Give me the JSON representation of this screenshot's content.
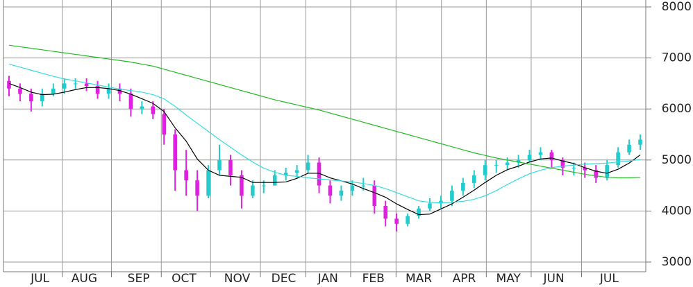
{
  "chart_data": {
    "type": "candlestick",
    "x": [
      0,
      1,
      2,
      3,
      4,
      5,
      6,
      7,
      8,
      9,
      10,
      11,
      12,
      13,
      14,
      15,
      16,
      17,
      18,
      19,
      20,
      21,
      22,
      23,
      24,
      25,
      26,
      27,
      28,
      29,
      30,
      31,
      32,
      33,
      34,
      35,
      36,
      37,
      38,
      39,
      40,
      41,
      42,
      43,
      44,
      45,
      46,
      47,
      48,
      49,
      50,
      51,
      52,
      53,
      54,
      55,
      56,
      57
    ],
    "open": [
      6550,
      6400,
      6300,
      6150,
      6300,
      6400,
      6500,
      6500,
      6450,
      6300,
      6400,
      6300,
      6000,
      6050,
      5900,
      5500,
      4800,
      4600,
      4300,
      4800,
      5000,
      4700,
      4300,
      4500,
      4500,
      4700,
      4750,
      4800,
      4950,
      4500,
      4300,
      4400,
      4500,
      4500,
      4100,
      3850,
      3750,
      3900,
      4050,
      4150,
      4200,
      4400,
      4550,
      4700,
      4900,
      4900,
      4950,
      5000,
      5100,
      5150,
      5000,
      4850,
      4850,
      4800,
      4650,
      4900,
      5150,
      5300
    ],
    "high": [
      6650,
      6500,
      6400,
      6400,
      6500,
      6600,
      6600,
      6600,
      6550,
      6500,
      6500,
      6400,
      6150,
      6150,
      6000,
      5600,
      5200,
      4800,
      4900,
      5300,
      5100,
      4800,
      4600,
      4600,
      4800,
      4850,
      4900,
      5100,
      5050,
      4600,
      4500,
      4600,
      4650,
      4600,
      4200,
      3950,
      3950,
      4100,
      4250,
      4300,
      4500,
      4650,
      4800,
      5000,
      5000,
      5050,
      5100,
      5200,
      5250,
      5200,
      5050,
      4950,
      4950,
      4900,
      5000,
      5250,
      5400,
      5500
    ],
    "low": [
      6250,
      6150,
      5950,
      6050,
      6250,
      6300,
      6400,
      6350,
      6200,
      6200,
      6150,
      5850,
      5900,
      5800,
      5300,
      4400,
      4300,
      4000,
      4250,
      4700,
      4500,
      4050,
      4250,
      4350,
      4500,
      4600,
      4650,
      4750,
      4350,
      4150,
      4200,
      4300,
      4400,
      3950,
      3700,
      3600,
      3700,
      3850,
      4000,
      4050,
      4100,
      4300,
      4450,
      4600,
      4750,
      4800,
      4850,
      4950,
      5000,
      4850,
      4700,
      4700,
      4650,
      4550,
      4600,
      4850,
      5100,
      5200
    ],
    "close": [
      6400,
      6300,
      6150,
      6300,
      6400,
      6500,
      6500,
      6450,
      6300,
      6400,
      6300,
      6000,
      6050,
      5900,
      5500,
      4800,
      4600,
      4300,
      4800,
      5000,
      4700,
      4300,
      4500,
      4500,
      4700,
      4750,
      4800,
      4950,
      4500,
      4300,
      4400,
      4500,
      4500,
      4100,
      3850,
      3750,
      3900,
      4050,
      4150,
      4200,
      4400,
      4550,
      4700,
      4900,
      4900,
      4950,
      5000,
      5100,
      5150,
      5000,
      4850,
      4850,
      4800,
      4650,
      4900,
      5150,
      5300,
      5400
    ],
    "up_color": "#22cccc",
    "down_color": "#e020e0",
    "lines": [
      {
        "color": "#000000",
        "values": [
          6500,
          6420,
          6330,
          6280,
          6290,
          6330,
          6380,
          6420,
          6420,
          6400,
          6360,
          6290,
          6200,
          6110,
          5950,
          5630,
          5370,
          5020,
          4800,
          4700,
          4680,
          4660,
          4560,
          4560,
          4560,
          4570,
          4640,
          4740,
          4740,
          4650,
          4590,
          4530,
          4440,
          4360,
          4270,
          4140,
          4030,
          3930,
          3940,
          4040,
          4140,
          4270,
          4410,
          4560,
          4700,
          4810,
          4880,
          4960,
          5020,
          5040,
          4980,
          4930,
          4850,
          4780,
          4740,
          4820,
          4940,
          5100
        ]
      },
      {
        "color": "#33dddd",
        "values": [
          6880,
          6820,
          6760,
          6700,
          6640,
          6590,
          6550,
          6510,
          6470,
          6430,
          6390,
          6360,
          6330,
          6280,
          6200,
          6050,
          5880,
          5720,
          5560,
          5400,
          5250,
          5100,
          4960,
          4840,
          4760,
          4700,
          4680,
          4650,
          4630,
          4610,
          4590,
          4570,
          4540,
          4500,
          4440,
          4360,
          4280,
          4200,
          4170,
          4160,
          4170,
          4190,
          4230,
          4300,
          4400,
          4520,
          4630,
          4730,
          4800,
          4850,
          4880,
          4900,
          4920,
          4930,
          4940,
          4960,
          4980,
          5010
        ]
      },
      {
        "color": "#22bb22",
        "values": [
          7250,
          7220,
          7190,
          7160,
          7130,
          7100,
          7070,
          7040,
          7010,
          6980,
          6950,
          6920,
          6880,
          6840,
          6780,
          6720,
          6660,
          6600,
          6540,
          6480,
          6420,
          6360,
          6300,
          6240,
          6180,
          6130,
          6080,
          6030,
          5980,
          5920,
          5860,
          5800,
          5740,
          5680,
          5620,
          5560,
          5500,
          5440,
          5380,
          5320,
          5260,
          5200,
          5140,
          5090,
          5040,
          5000,
          4960,
          4920,
          4880,
          4840,
          4800,
          4760,
          4720,
          4690,
          4660,
          4650,
          4650,
          4660
        ]
      }
    ],
    "xlim": [
      -0.5,
      57.5
    ],
    "xticks": [
      {
        "value": 2.8,
        "label": "JUL"
      },
      {
        "value": 6.8,
        "label": "AUG"
      },
      {
        "value": 11.7,
        "label": "SEP"
      },
      {
        "value": 15.8,
        "label": "OCT"
      },
      {
        "value": 20.6,
        "label": "NOV"
      },
      {
        "value": 24.8,
        "label": "DEC"
      },
      {
        "value": 28.8,
        "label": "JAN"
      },
      {
        "value": 32.9,
        "label": "FEB"
      },
      {
        "value": 37,
        "label": "MAR"
      },
      {
        "value": 41.1,
        "label": "APR"
      },
      {
        "value": 45.1,
        "label": "MAY"
      },
      {
        "value": 49.2,
        "label": "JUN"
      },
      {
        "value": 54.2,
        "label": "JUL"
      }
    ],
    "ylim": [
      3000,
      8000
    ],
    "yticks": [
      3000,
      4000,
      5000,
      6000,
      7000,
      8000
    ],
    "grid": true
  }
}
